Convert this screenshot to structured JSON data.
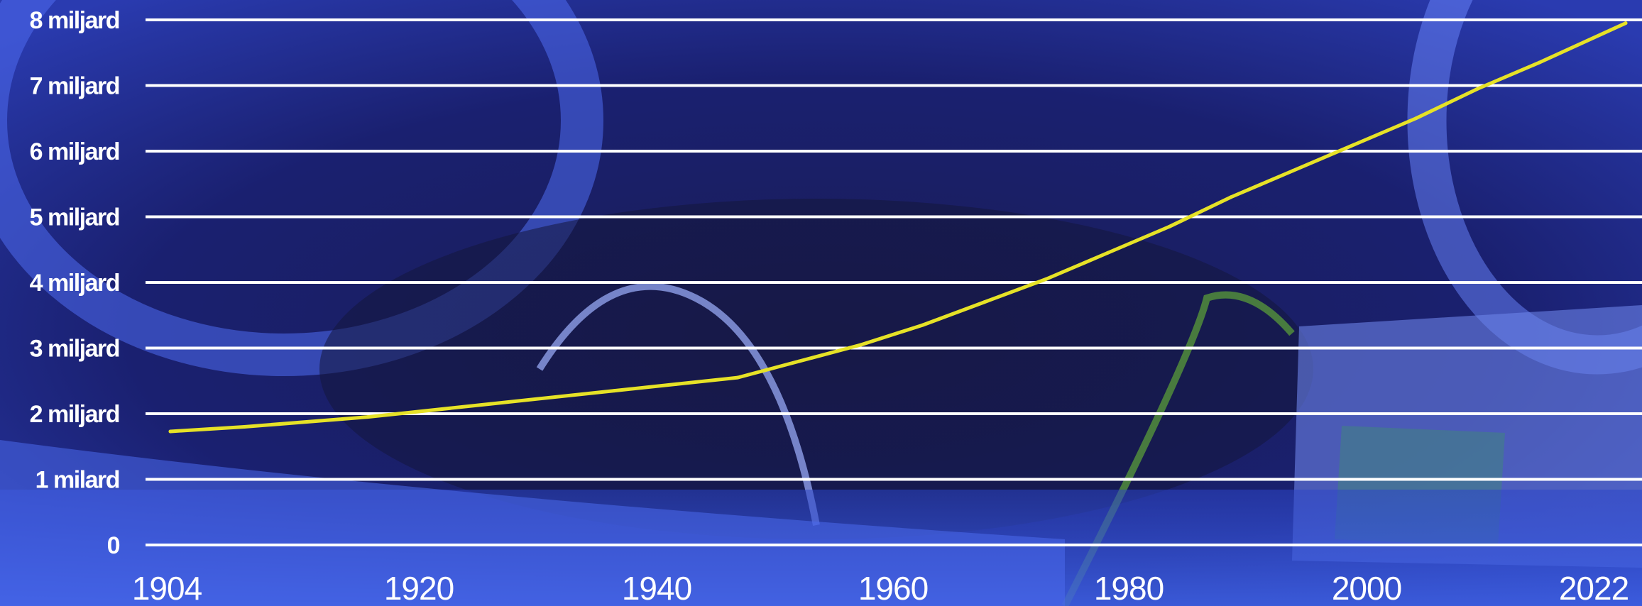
{
  "colors": {
    "grid": "#ffffff",
    "line": "#e6e227",
    "text": "#ffffff",
    "background": "#1a2070"
  },
  "chart_data": {
    "type": "line",
    "title": "",
    "xlabel": "",
    "ylabel": "",
    "xlim": [
      1904,
      2022
    ],
    "ylim": [
      0,
      8
    ],
    "grid": true,
    "y_tick_labels": [
      "0",
      "1 milard",
      "2 miljard",
      "3 miljard",
      "4 miljard",
      "5 miljard",
      "6 miljard",
      "7 miljard",
      "8 miljard"
    ],
    "y_tick_values": [
      0,
      1,
      2,
      3,
      4,
      5,
      6,
      7,
      8
    ],
    "x_tick_labels": [
      "1904",
      "1920",
      "1940",
      "1960",
      "1980",
      "2000",
      "2022"
    ],
    "x_tick_values": [
      1904,
      1920,
      1940,
      1960,
      1980,
      2000,
      2022
    ],
    "series": [
      {
        "x": [
          1904,
          1910,
          1920,
          1930,
          1940,
          1945,
          1950,
          1955,
          1960,
          1965,
          1970,
          1975,
          1980,
          1985,
          1990,
          1995,
          2000,
          2005,
          2010,
          2015,
          2022
        ],
        "values": [
          1.73,
          1.8,
          1.95,
          2.15,
          2.35,
          2.45,
          2.55,
          2.8,
          3.05,
          3.35,
          3.7,
          4.05,
          4.45,
          4.85,
          5.3,
          5.7,
          6.1,
          6.5,
          6.95,
          7.35,
          7.95
        ]
      }
    ]
  }
}
